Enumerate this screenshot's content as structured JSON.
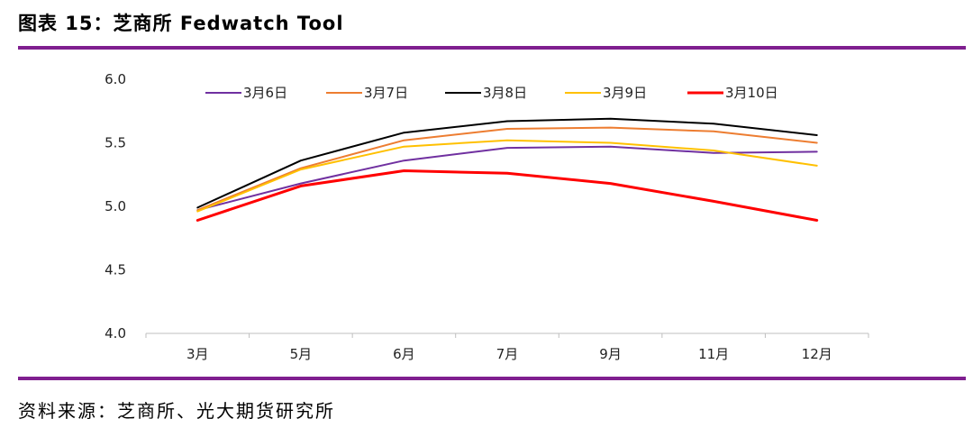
{
  "figure": {
    "title": "图表 15：芝商所 Fedwatch Tool",
    "source": "资料来源：芝商所、光大期货研究所",
    "rule_color": "#7f1f8f"
  },
  "chart_data": {
    "type": "line",
    "title": "",
    "xlabel": "",
    "ylabel": "",
    "ylim": [
      4.0,
      6.0
    ],
    "yticks": [
      "4.0",
      "4.5",
      "5.0",
      "5.5",
      "6.0"
    ],
    "categories": [
      "3月",
      "5月",
      "6月",
      "7月",
      "9月",
      "11月",
      "12月"
    ],
    "grid": false,
    "legend_position": "top",
    "series": [
      {
        "name": "3月6日",
        "color": "#7030a0",
        "values": [
          4.97,
          5.18,
          5.36,
          5.46,
          5.47,
          5.42,
          5.43
        ]
      },
      {
        "name": "3月7日",
        "color": "#ed7d31",
        "values": [
          4.97,
          5.3,
          5.52,
          5.61,
          5.62,
          5.59,
          5.5
        ]
      },
      {
        "name": "3月8日",
        "color": "#000000",
        "values": [
          4.99,
          5.36,
          5.58,
          5.67,
          5.69,
          5.65,
          5.56
        ]
      },
      {
        "name": "3月9日",
        "color": "#ffc000",
        "values": [
          4.96,
          5.29,
          5.47,
          5.52,
          5.5,
          5.44,
          5.32
        ]
      },
      {
        "name": "3月10日",
        "color": "#ff0000",
        "values": [
          4.89,
          5.16,
          5.28,
          5.26,
          5.18,
          5.04,
          4.89
        ]
      }
    ]
  }
}
